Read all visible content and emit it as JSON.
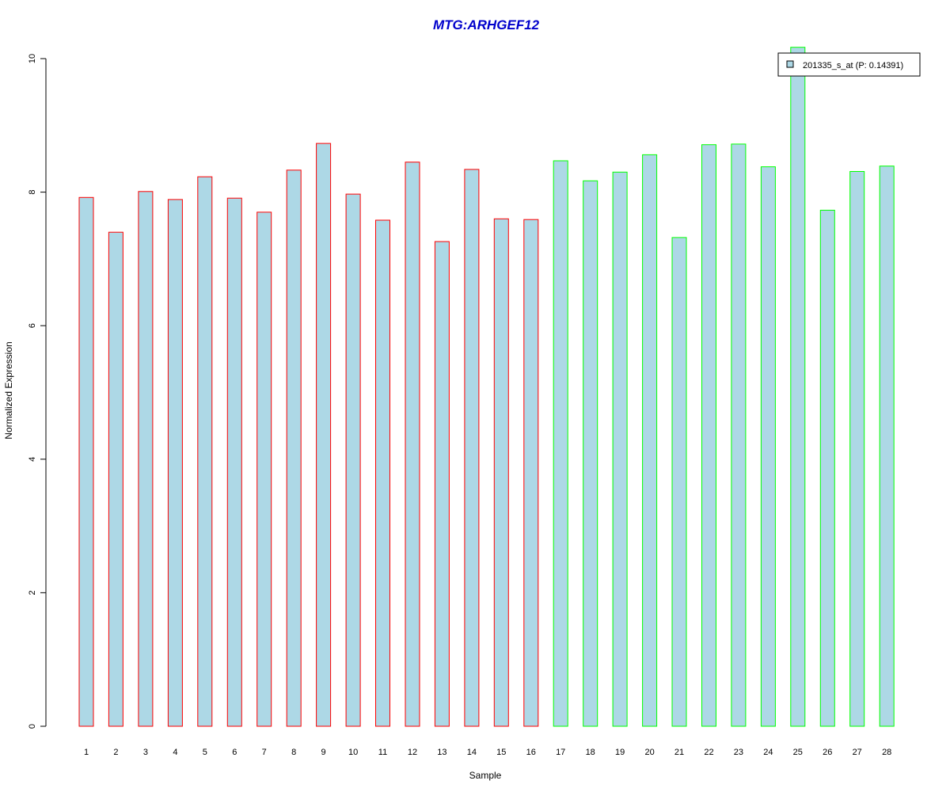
{
  "chart_data": {
    "type": "bar",
    "title": "MTG:ARHGEF12",
    "title_color": "#0000CC",
    "xlabel": "Sample",
    "ylabel": "Normalized Expression",
    "ylim": [
      0,
      10
    ],
    "yticks": [
      0,
      2,
      4,
      6,
      8,
      10
    ],
    "categories": [
      "1",
      "2",
      "3",
      "4",
      "5",
      "6",
      "7",
      "8",
      "9",
      "10",
      "11",
      "12",
      "13",
      "14",
      "15",
      "16",
      "17",
      "18",
      "19",
      "20",
      "21",
      "22",
      "23",
      "24",
      "25",
      "26",
      "27",
      "28"
    ],
    "series": [
      {
        "name": "201335_s_at (P: 0.14391)",
        "values": [
          7.92,
          7.4,
          8.01,
          7.89,
          8.23,
          7.91,
          7.7,
          8.33,
          8.73,
          7.97,
          7.58,
          8.45,
          7.26,
          8.34,
          7.6,
          7.59,
          8.47,
          8.17,
          8.3,
          8.56,
          7.32,
          8.71,
          8.72,
          8.38,
          10.17,
          7.73,
          8.31,
          8.39
        ],
        "fill": "#ADD8E6"
      }
    ],
    "border_colors": [
      "#FF0000",
      "#FF0000",
      "#FF0000",
      "#FF0000",
      "#FF0000",
      "#FF0000",
      "#FF0000",
      "#FF0000",
      "#FF0000",
      "#FF0000",
      "#FF0000",
      "#FF0000",
      "#FF0000",
      "#FF0000",
      "#FF0000",
      "#FF0000",
      "#00FF00",
      "#00FF00",
      "#00FF00",
      "#00FF00",
      "#00FF00",
      "#00FF00",
      "#00FF00",
      "#00FF00",
      "#00FF00",
      "#00FF00",
      "#00FF00",
      "#00FF00"
    ],
    "legend": {
      "position": "top-right"
    },
    "grid": false
  }
}
